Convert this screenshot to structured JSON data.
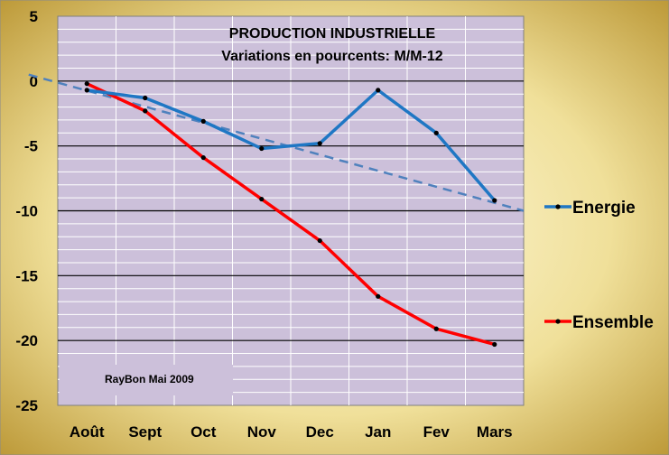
{
  "chart_data": {
    "type": "line",
    "title": "PRODUCTION INDUSTRIELLE",
    "subtitle": "Variations en pourcents: M/M-12",
    "xlabel": "",
    "ylabel": "",
    "categories": [
      "Août",
      "Sept",
      "Oct",
      "Nov",
      "Dec",
      "Jan",
      "Fev",
      "Mars"
    ],
    "ylim": [
      -25,
      5
    ],
    "yticks": [
      5,
      0,
      -5,
      -10,
      -15,
      -20,
      -25
    ],
    "ytick_labels": [
      "5",
      "0",
      "-5",
      "-10",
      "-15",
      "-20",
      "-25"
    ],
    "grid": true,
    "legend_position": "right",
    "series": [
      {
        "name": "Energie",
        "color": "#1f77c4",
        "values": [
          -0.7,
          -1.3,
          -3.1,
          -5.2,
          -4.8,
          -0.7,
          -4.0,
          -9.2
        ]
      },
      {
        "name": "Ensemble",
        "color": "#ff0000",
        "values": [
          -0.2,
          -2.3,
          -5.9,
          -9.1,
          -12.3,
          -16.6,
          -19.1,
          -20.3
        ]
      }
    ],
    "trendline": {
      "color": "#4f81bd",
      "style": "dashed",
      "from": [
        -1,
        0.5
      ],
      "to": [
        7.5,
        -10.0
      ]
    },
    "annotation": "RayBon Mai 2009"
  }
}
